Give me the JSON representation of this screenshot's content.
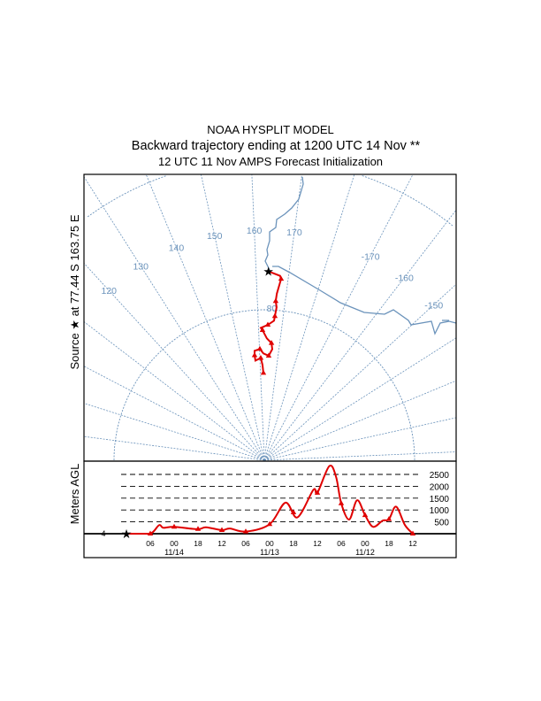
{
  "header": {
    "line1": "NOAA HYSPLIT MODEL",
    "line2": "Backward trajectory ending at 1200 UTC 14 Nov **",
    "line3": "12 UTC 11 Nov    AMPS  Forecast Initialization"
  },
  "colors": {
    "map": "#6b93bb",
    "trajectory": "#e00000",
    "frame": "#000000"
  },
  "chart_data": [
    {
      "type": "line",
      "title": "Trajectory map (polar stereographic)",
      "ylabel": "Source ★ at  77.44 S  163.75 E",
      "source": {
        "lat": -77.44,
        "lon": 163.75
      },
      "meridian_labels": [
        {
          "lon": 120,
          "label": "120"
        },
        {
          "lon": 130,
          "label": "130"
        },
        {
          "lon": 140,
          "label": "140"
        },
        {
          "lon": 150,
          "label": "150"
        },
        {
          "lon": 160,
          "label": "160"
        },
        {
          "lon": 170,
          "label": "170"
        },
        {
          "lon": -170,
          "label": "-170"
        },
        {
          "lon": -160,
          "label": "-160"
        },
        {
          "lon": -150,
          "label": "-150"
        }
      ],
      "latitude_circles": [
        -80,
        -70
      ],
      "latitude_label": "80",
      "trajectory": [
        [
          -77.44,
          163.75
        ],
        [
          -77.7,
          167.4
        ],
        [
          -77.9,
          167.8
        ],
        [
          -78.9,
          166.8
        ],
        [
          -79.4,
          166.6
        ],
        [
          -79.8,
          167.1
        ],
        [
          -80.4,
          166.7
        ],
        [
          -80.7,
          166.5
        ],
        [
          -81.0,
          164.0
        ],
        [
          -81.2,
          161.0
        ],
        [
          -81.35,
          161.7
        ],
        [
          -81.9,
          163.7
        ],
        [
          -82.2,
          166.0
        ],
        [
          -82.6,
          166.6
        ],
        [
          -83.05,
          164.9
        ],
        [
          -82.9,
          162.0
        ],
        [
          -82.6,
          160.2
        ],
        [
          -82.7,
          157.4
        ],
        [
          -83.0,
          157.2
        ],
        [
          -83.35,
          157.4
        ],
        [
          -83.2,
          160.5
        ],
        [
          -83.65,
          161.4
        ],
        [
          -84.2,
          161.9
        ]
      ]
    },
    {
      "type": "line",
      "ylabel": "Meters AGL",
      "source_height_label": "4",
      "xlim_hours_back": [
        0,
        72
      ],
      "ylim": [
        0,
        3000
      ],
      "y_ticks": [
        "500",
        "1000",
        "1500",
        "2000",
        "2500"
      ],
      "x_ticks": [
        "06",
        "00",
        "18",
        "12",
        "06",
        "00",
        "18",
        "12",
        "06",
        "00",
        "18",
        "12"
      ],
      "date_labels": [
        {
          "hour": 12,
          "label": "11/14"
        },
        {
          "hour": 36,
          "label": "11/13"
        },
        {
          "hour": 60,
          "label": "11/12"
        }
      ],
      "series": [
        {
          "name": "height",
          "hours_back": [
            0,
            1.6,
            6,
            8.2,
            9.3,
            12,
            17.8,
            20,
            24,
            26,
            30,
            36,
            40,
            43,
            47,
            48,
            51,
            52.7,
            54,
            56,
            58,
            60,
            62,
            64.4,
            66,
            67.8,
            70,
            72
          ],
          "values": [
            4,
            0,
            0,
            360,
            250,
            290,
            190,
            270,
            150,
            220,
            90,
            400,
            1310,
            690,
            1850,
            1720,
            2850,
            2400,
            1280,
            600,
            1410,
            780,
            290,
            550,
            610,
            1140,
            370,
            0
          ]
        }
      ]
    }
  ]
}
